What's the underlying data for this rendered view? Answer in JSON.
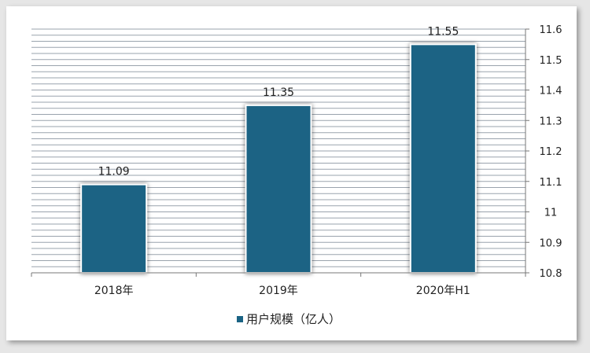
{
  "chart_data": {
    "type": "bar",
    "title": "",
    "xlabel": "",
    "ylabel": "",
    "categories": [
      "2018年",
      "2019年",
      "2020年H1"
    ],
    "series": [
      {
        "name": "用户规模（亿人）",
        "values": [
          11.09,
          11.35,
          11.55
        ],
        "data_labels": [
          "11.09",
          "11.35",
          "11.55"
        ]
      }
    ],
    "ylim": [
      10.8,
      11.6
    ],
    "yticks": [
      10.8,
      10.9,
      11,
      11.1,
      11.2,
      11.3,
      11.4,
      11.5,
      11.6
    ],
    "ytick_labels": [
      "10.8",
      "10.9",
      "11",
      "11.1",
      "11.2",
      "11.3",
      "11.4",
      "11.5",
      "11.6"
    ],
    "y_axis_side": "right",
    "grid": "horizontal",
    "legend_position": "bottom",
    "colors": {
      "bar": "#1a6384",
      "grid": "#9aa3ad",
      "background": "#e6e6e6"
    }
  }
}
